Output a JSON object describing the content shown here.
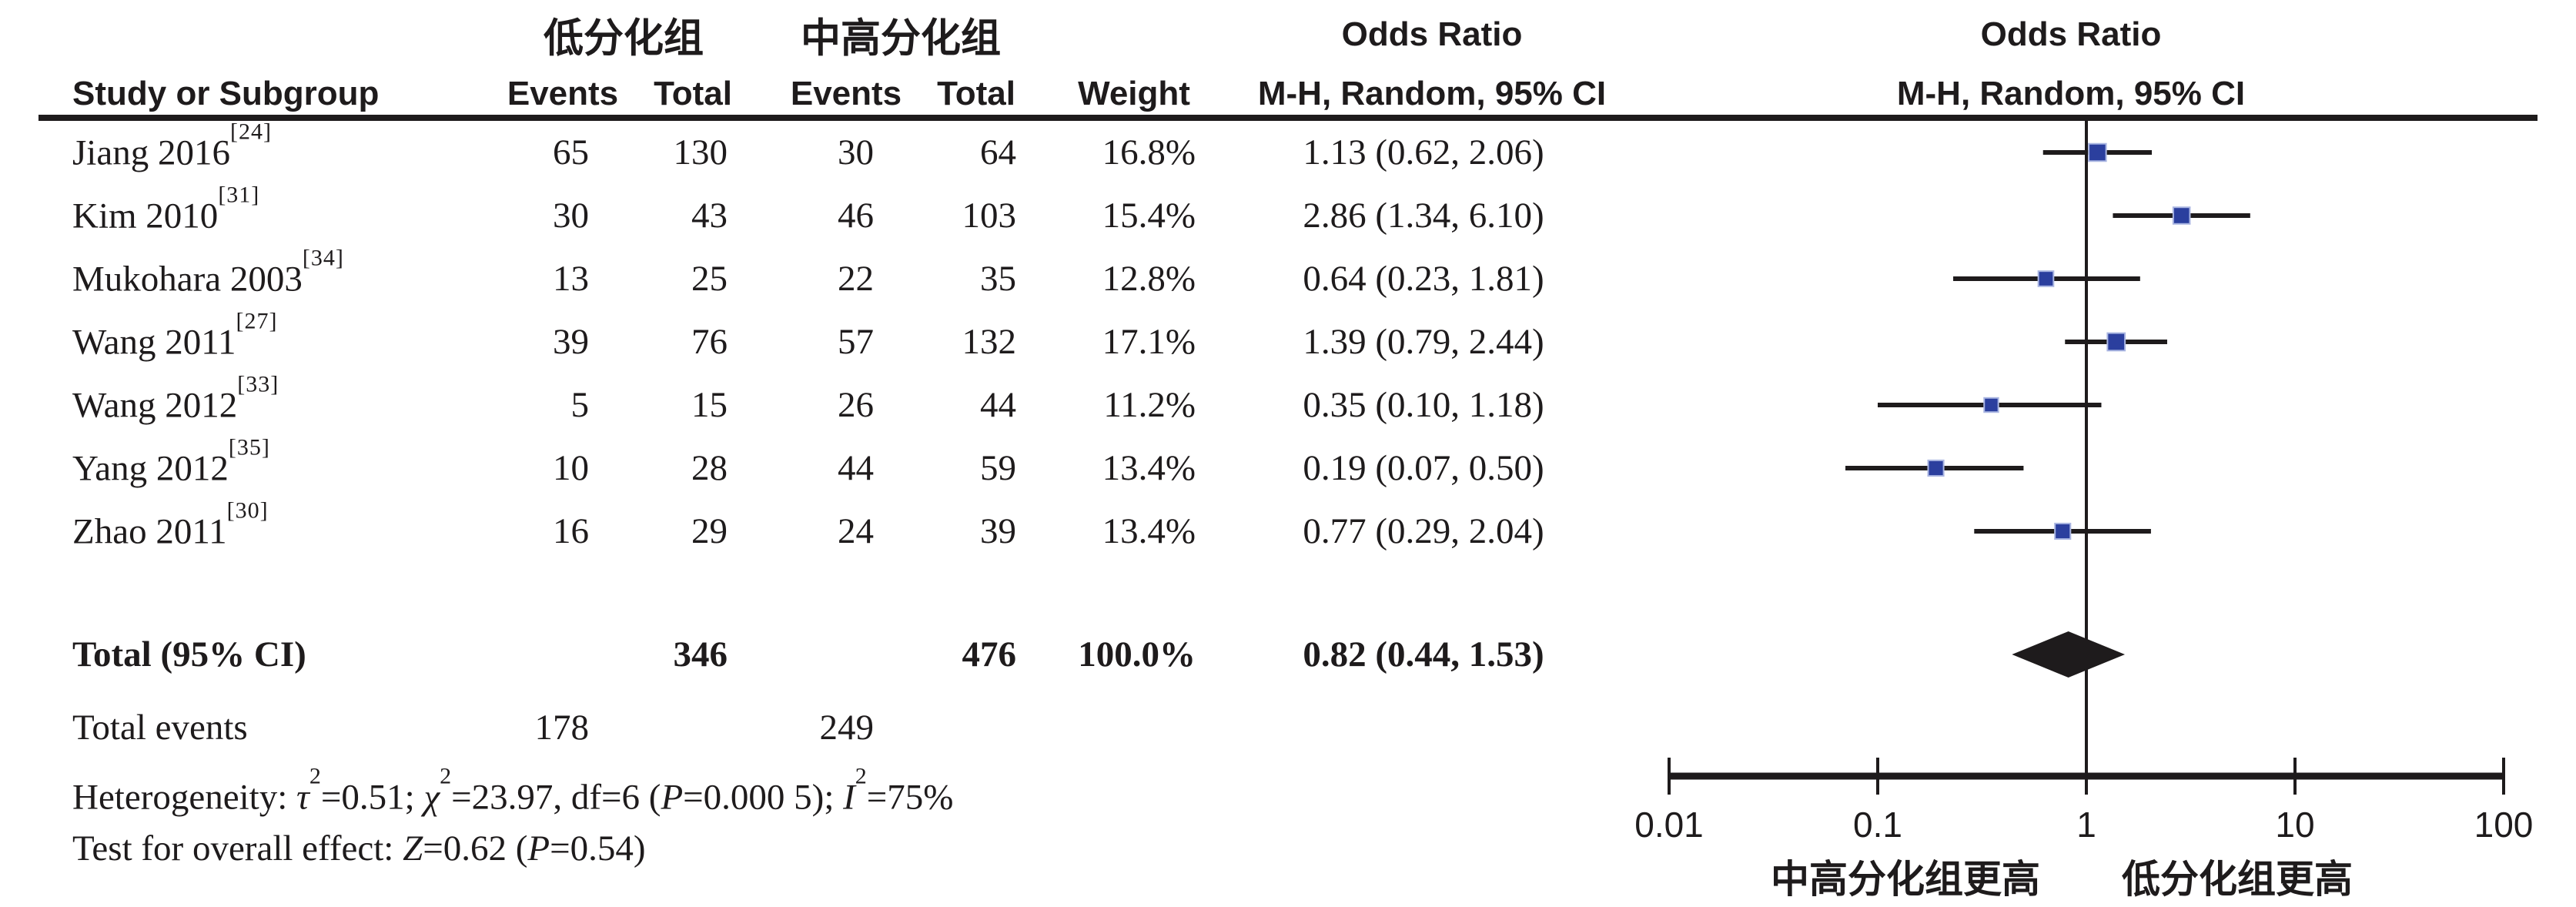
{
  "table": {
    "group1_header": "低分化组",
    "group2_header": "中高分化组",
    "or_header_text_col": "Odds Ratio",
    "or_header_plot_col": "Odds Ratio",
    "columns": {
      "study": "Study or Subgroup",
      "events1": "Events",
      "total1": "Total",
      "events2": "Events",
      "total2": "Total",
      "weight": "Weight",
      "mh_ci_text": "M-H, Random, 95% CI",
      "mh_ci_plot": "M-H, Random, 95% CI"
    },
    "studies": [
      {
        "study": "Jiang 2016",
        "ref": "[24]",
        "events1": "65",
        "total1": "130",
        "events2": "30",
        "total2": "64",
        "weight": "16.8%",
        "or_ci": "1.13 (0.62, 2.06)"
      },
      {
        "study": "Kim 2010",
        "ref": "[31]",
        "events1": "30",
        "total1": "43",
        "events2": "46",
        "total2": "103",
        "weight": "15.4%",
        "or_ci": "2.86 (1.34, 6.10)"
      },
      {
        "study": "Mukohara 2003",
        "ref": "[34]",
        "events1": "13",
        "total1": "25",
        "events2": "22",
        "total2": "35",
        "weight": "12.8%",
        "or_ci": "0.64 (0.23, 1.81)"
      },
      {
        "study": "Wang 2011",
        "ref": "[27]",
        "events1": "39",
        "total1": "76",
        "events2": "57",
        "total2": "132",
        "weight": "17.1%",
        "or_ci": "1.39 (0.79, 2.44)"
      },
      {
        "study": "Wang 2012",
        "ref": "[33]",
        "events1": "5",
        "total1": "15",
        "events2": "26",
        "total2": "44",
        "weight": "11.2%",
        "or_ci": "0.35 (0.10, 1.18)"
      },
      {
        "study": "Yang 2012",
        "ref": "[35]",
        "events1": "10",
        "total1": "28",
        "events2": "44",
        "total2": "59",
        "weight": "13.4%",
        "or_ci": "0.19 (0.07, 0.50)"
      },
      {
        "study": "Zhao 2011",
        "ref": "[30]",
        "events1": "16",
        "total1": "29",
        "events2": "24",
        "total2": "39",
        "weight": "13.4%",
        "or_ci": "0.77 (0.29, 2.04)"
      }
    ],
    "total_row": {
      "label": "Total (95% CI)",
      "total1": "346",
      "total2": "476",
      "weight": "100.0%",
      "or_ci": "0.82 (0.44, 1.53)"
    },
    "total_events": {
      "label": "Total events",
      "events1": "178",
      "events2": "249"
    },
    "heterogeneity_segments": [
      {
        "t": "Heterogeneity: "
      },
      {
        "t": "τ",
        "i": 1
      },
      {
        "t": "2",
        "sup": 1
      },
      {
        "t": "=0.51; "
      },
      {
        "t": "χ",
        "i": 1
      },
      {
        "t": "2",
        "sup": 1
      },
      {
        "t": "=23.97, df=6 ("
      },
      {
        "t": "P",
        "i": 1
      },
      {
        "t": "=0.000 5); "
      },
      {
        "t": "I",
        "i": 1
      },
      {
        "t": "2",
        "sup": 1
      },
      {
        "t": "=75%"
      }
    ],
    "overall_effect_segments": [
      {
        "t": "Test for overall effect: "
      },
      {
        "t": "Z",
        "i": 1
      },
      {
        "t": "=0.62 ("
      },
      {
        "t": "P",
        "i": 1
      },
      {
        "t": "=0.54)"
      }
    ]
  },
  "chart_data": {
    "type": "forest",
    "x_scale": "log10",
    "xlim": [
      0.01,
      100
    ],
    "x_ticks": [
      0.01,
      0.1,
      1,
      10,
      100
    ],
    "tick_labels": [
      "0.01",
      "0.1",
      "1",
      "10",
      "100"
    ],
    "null_line": 1,
    "left_label": "中高分化组更高",
    "right_label": "低分化组更高",
    "marker_color": "#2b3f9e",
    "marker_edge_color": "#aab6e2",
    "line_color": "#1e1b1c",
    "studies": [
      {
        "name": "Jiang 2016",
        "or": 1.13,
        "ci_low": 0.62,
        "ci_high": 2.06,
        "weight_pct": 16.8
      },
      {
        "name": "Kim 2010",
        "or": 2.86,
        "ci_low": 1.34,
        "ci_high": 6.1,
        "weight_pct": 15.4
      },
      {
        "name": "Mukohara 2003",
        "or": 0.64,
        "ci_low": 0.23,
        "ci_high": 1.81,
        "weight_pct": 12.8
      },
      {
        "name": "Wang 2011",
        "or": 1.39,
        "ci_low": 0.79,
        "ci_high": 2.44,
        "weight_pct": 17.1
      },
      {
        "name": "Wang 2012",
        "or": 0.35,
        "ci_low": 0.1,
        "ci_high": 1.18,
        "weight_pct": 11.2
      },
      {
        "name": "Yang 2012",
        "or": 0.19,
        "ci_low": 0.07,
        "ci_high": 0.5,
        "weight_pct": 13.4
      },
      {
        "name": "Zhao 2011",
        "or": 0.77,
        "ci_low": 0.29,
        "ci_high": 2.04,
        "weight_pct": 13.4
      }
    ],
    "total": {
      "label": "Total (95% CI)",
      "or": 0.82,
      "ci_low": 0.44,
      "ci_high": 1.53,
      "weight_pct": 100.0
    }
  }
}
